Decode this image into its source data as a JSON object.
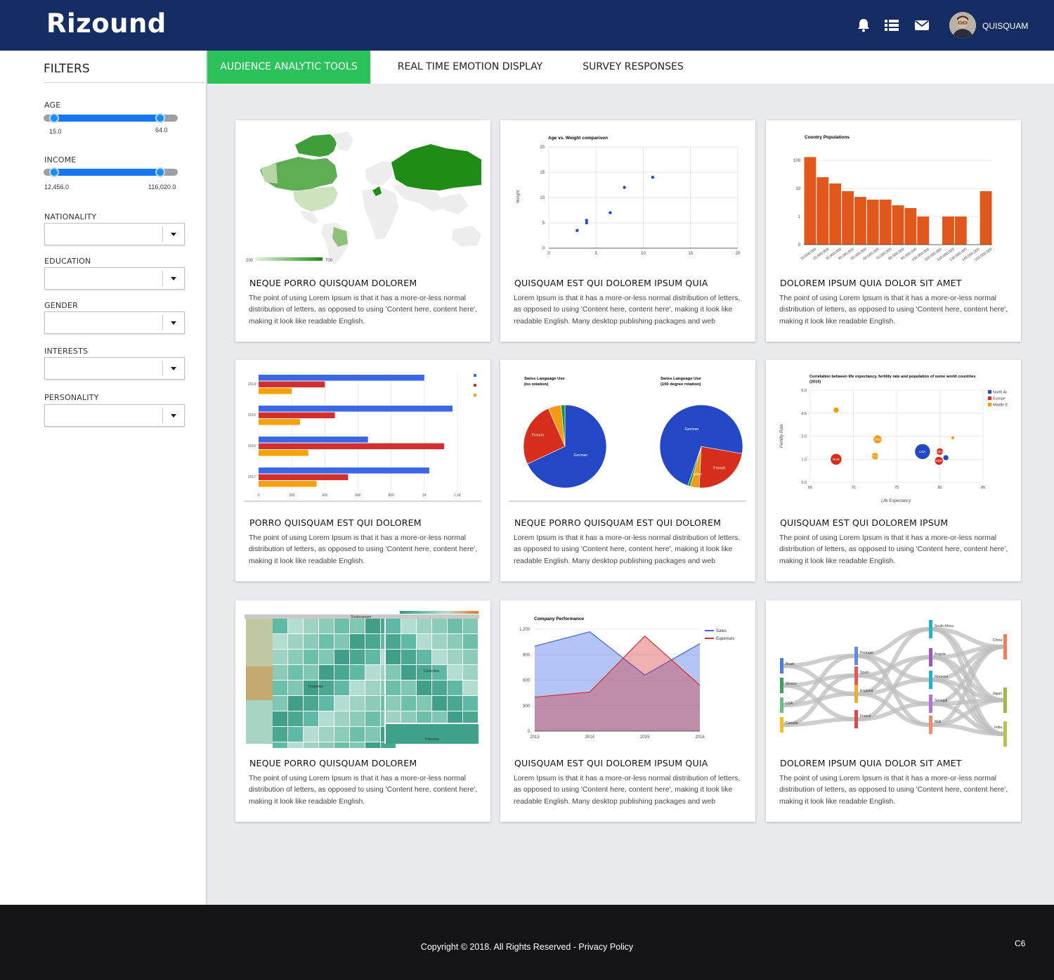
{
  "app": {
    "logo": "Rizound",
    "username": "QUISQUAM"
  },
  "header_icons": [
    "bell-icon",
    "list-icon",
    "mail-icon"
  ],
  "filters": {
    "title": "FILTERS",
    "age": {
      "label": "AGE",
      "min": "15.0",
      "max": "64.0"
    },
    "income": {
      "label": "INCOME",
      "min": "12,456.0",
      "max": "116,020.0"
    },
    "selects": [
      "NATIONALITY",
      "EDUCATION",
      "GENDER",
      "INTERESTS",
      "PERSONALITY"
    ]
  },
  "tabs": [
    "AUDIENCE ANALYTIC TOOLS",
    "REAL TIME EMOTION DISPLAY",
    "SURVEY RESPONSES"
  ],
  "cards": [
    {
      "title": "NEQUE PORRO QUISQUAM DOLOREM",
      "text": "The point of using Lorem Ipsum is that it has a more-or-less normal distribution of letters, as opposed to using 'Content here, content here', making it look like readable English."
    },
    {
      "title": "QUISQUAM EST QUI DOLOREM IPSUM QUIA",
      "text": "Lorem Ipsum is that it has a more-or-less normal distribution of letters, as opposed to using 'Content here, content here', making it look like readable English. Many desktop publishing packages and web"
    },
    {
      "title": "DOLOREM IPSUM QUIA DOLOR SIT AMET",
      "text": "The point of using Lorem Ipsum is that it has a more-or-less normal distribution of letters, as opposed to using 'Content here, content here', making it look like readable English."
    },
    {
      "title": "PORRO QUISQUAM EST QUI DOLOREM",
      "text": "The point of using Lorem Ipsum is that it has a more-or-less normal distribution of letters, as opposed to using 'Content here, content here', making it look like readable English."
    },
    {
      "title": "NEQUE PORRO QUISQUAM EST QUI DOLOREM",
      "text": "Lorem Ipsum is that it has a more-or-less normal distribution of letters, as opposed to using 'Content here, content here', making it look like readable English. Many desktop publishing packages and web"
    },
    {
      "title": "QUISQUAM EST QUI DOLOREM IPSUM",
      "text": "The point of using Lorem Ipsum is that it has a more-or-less normal distribution of letters, as opposed to using 'Content here, content here', making it look like readable English."
    },
    {
      "title": "NEQUE PORRO QUISQUAM DOLOREM",
      "text": "The point of using Lorem Ipsum is that it has a more-or-less normal distribution of letters, as opposed to using 'Content here, content here', making it look like readable English."
    },
    {
      "title": "QUISQUAM EST QUI DOLOREM IPSUM QUIA",
      "text": "Lorem Ipsum is that it has a more-or-less normal distribution of letters, as opposed to using 'Content here, content here', making it look like readable English. Many desktop publishing packages and web"
    },
    {
      "title": "DOLOREM IPSUM QUIA DOLOR SIT AMET",
      "text": "The point of using Lorem Ipsum is that it has a more-or-less normal distribution of letters, as opposed to using 'Content here, content here', making it look like readable English."
    }
  ],
  "chart_data": [
    {
      "type": "geo",
      "legend_min": "200",
      "legend_max": "700"
    },
    {
      "type": "scatter",
      "title": "Age vs. Weight comparison",
      "ylabel": "Weight",
      "xlim": [
        0,
        20
      ],
      "ylim": [
        0,
        20
      ],
      "xticks": [
        "0",
        "5",
        "10",
        "15",
        "20"
      ],
      "yticks": [
        "0",
        "5",
        "10",
        "15",
        "20"
      ],
      "points": [
        [
          3,
          3.5
        ],
        [
          4,
          5
        ],
        [
          4,
          5.5
        ],
        [
          6.5,
          7
        ],
        [
          8,
          12
        ],
        [
          11,
          14
        ]
      ]
    },
    {
      "type": "bar",
      "title": "Country Populations",
      "scale": "log",
      "yticks": [
        "0",
        "1",
        "10",
        "100"
      ],
      "categories": [
        "10,000,000",
        "20,000,000",
        "30,000,000",
        "40,000,000",
        "50,000,000",
        "60,000,000",
        "70,000,000",
        "80,000,000",
        "90,000,000",
        "100,000,000",
        "110,000,000",
        "120,000,000",
        "130,000,000",
        "140,000,000",
        "150,000,000"
      ],
      "values": [
        130,
        25,
        15,
        8,
        5,
        4,
        4,
        2.5,
        2,
        1,
        0,
        1,
        1,
        0,
        8
      ],
      "color": "#e0581b"
    },
    {
      "type": "bar",
      "orientation": "horizontal",
      "categories": [
        "2014",
        "2015",
        "2016",
        "2017"
      ],
      "xticks": [
        "0",
        "200",
        "400",
        "600",
        "800",
        "1K",
        "1.2K"
      ],
      "xlim": [
        0,
        1200
      ],
      "series": [
        {
          "color": "#3b67e6",
          "values": [
            1000,
            1170,
            660,
            1030
          ]
        },
        {
          "color": "#d32f2f",
          "values": [
            400,
            460,
            1120,
            540
          ]
        },
        {
          "color": "#f5a10c",
          "values": [
            200,
            250,
            300,
            350
          ]
        }
      ]
    },
    {
      "type": "pie",
      "charts": [
        {
          "title": "Swiss Language Use",
          "subtitle": "(no rotation)",
          "slices": [
            {
              "label": "German",
              "value": 67,
              "color": "#2447c5"
            },
            {
              "label": "French",
              "value": 25,
              "color": "#d62d1c"
            },
            {
              "label": "",
              "value": 5,
              "color": "#f39a16"
            },
            {
              "label": "",
              "value": 1.5,
              "color": "#189630"
            }
          ]
        },
        {
          "title": "Swiss Language Use",
          "subtitle": "(100 degree rotation)",
          "slices": [
            {
              "label": "French",
              "value": 23,
              "color": "#d62d1c"
            },
            {
              "label": "Italian",
              "value": 3.5,
              "color": "#f39a16"
            },
            {
              "label": "",
              "value": 1,
              "color": "#189630"
            },
            {
              "label": "German",
              "value": 72.5,
              "color": "#2447c5"
            }
          ]
        }
      ]
    },
    {
      "type": "bubble",
      "title": "Correlation between life expectancy, fertility rate and population of some world countries (2010)",
      "xlabel": "Life Expectancy",
      "ylabel": "Fertility Rate",
      "xlim": [
        65,
        85
      ],
      "ylim": [
        0,
        6
      ],
      "xticks": [
        "65",
        "70",
        "75",
        "80",
        "85"
      ],
      "yticks": [
        "0.0",
        "1.5",
        "3.0",
        "4.5",
        "6.0"
      ],
      "legend": [
        {
          "name": "North Ar",
          "color": "#2447c5"
        },
        {
          "name": "Europe",
          "color": "#d62d1c"
        },
        {
          "name": "Middle E",
          "color": "#f39a16"
        }
      ],
      "bubbles": [
        {
          "x": 68,
          "y": 4.7,
          "r": 4,
          "color": "#f39a16",
          "label": ""
        },
        {
          "x": 68,
          "y": 1.5,
          "r": 8,
          "color": "#d62d1c",
          "label": "RUS"
        },
        {
          "x": 72.8,
          "y": 2.8,
          "r": 6,
          "color": "#f39a16",
          "label": "IRN"
        },
        {
          "x": 72.5,
          "y": 1.7,
          "r": 5,
          "color": "#f39a16",
          "label": "EGY"
        },
        {
          "x": 78,
          "y": 2.0,
          "r": 11,
          "color": "#2447c5",
          "label": "USA"
        },
        {
          "x": 80,
          "y": 2.0,
          "r": 5,
          "color": "#d62d1c",
          "label": "DEU"
        },
        {
          "x": 79.9,
          "y": 1.4,
          "r": 6,
          "color": "#d62d1c",
          "label": "GBR"
        },
        {
          "x": 80.7,
          "y": 1.6,
          "r": 4,
          "color": "#2447c5",
          "label": ""
        },
        {
          "x": 81.5,
          "y": 2.9,
          "r": 2.5,
          "color": "#f39a16",
          "label": ""
        }
      ]
    },
    {
      "type": "treemap",
      "title": "Shakespeare",
      "groups": [
        "Tragedies",
        "Comedies",
        "Histories"
      ]
    },
    {
      "type": "area",
      "title": "Company Performance",
      "categories": [
        "2013",
        "2014",
        "2015",
        "2016"
      ],
      "ylim": [
        0,
        1200
      ],
      "yticks": [
        "0",
        "300",
        "600",
        "900",
        "1,200"
      ],
      "series": [
        {
          "name": "Sales",
          "color": "#3b67e6",
          "values": [
            1000,
            1170,
            660,
            1030
          ]
        },
        {
          "name": "Expenses",
          "color": "#d32f2f",
          "values": [
            400,
            460,
            1120,
            540
          ]
        }
      ]
    },
    {
      "type": "sankey",
      "sources": [
        "Brazil",
        "Mexico",
        "USA",
        "Canada"
      ],
      "middle": [
        "Portugal",
        "Spain",
        "England",
        "France"
      ],
      "targets_a": [
        "South Africa",
        "Angola",
        "Morocco",
        "Senegal",
        "Mali"
      ],
      "targets_b": [
        "China",
        "Japan",
        "India"
      ]
    }
  ],
  "footer": {
    "copyright": "Copyright © 2018. All Rights Reserved - Privacy Policy",
    "version": "C6"
  }
}
